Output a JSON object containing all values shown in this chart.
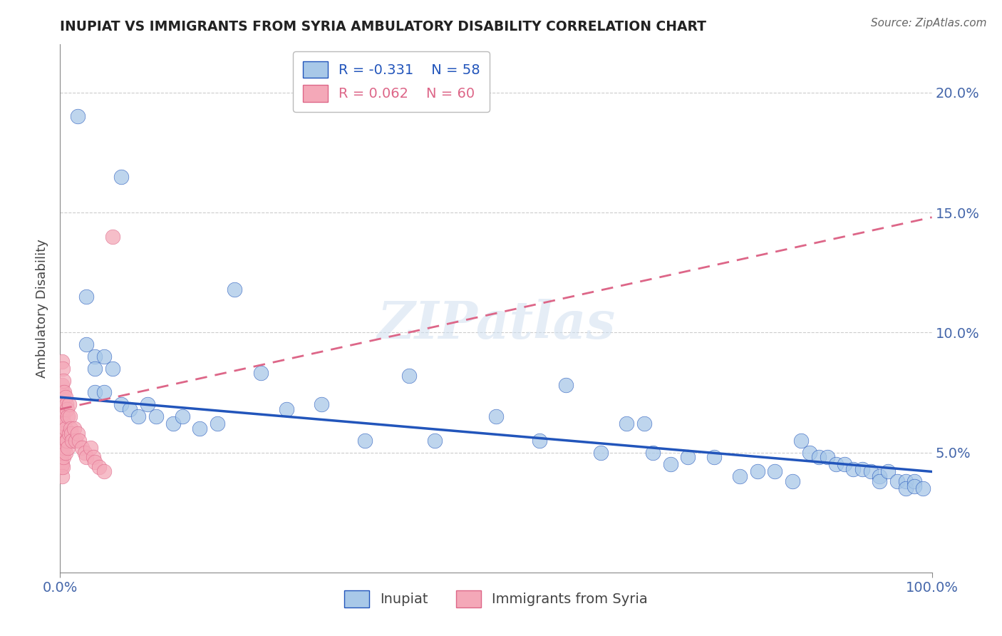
{
  "title": "INUPIAT VS IMMIGRANTS FROM SYRIA AMBULATORY DISABILITY CORRELATION CHART",
  "source": "Source: ZipAtlas.com",
  "ylabel": "Ambulatory Disability",
  "xlim": [
    0.0,
    1.0
  ],
  "ylim": [
    0.0,
    0.22
  ],
  "yticks": [
    0.05,
    0.1,
    0.15,
    0.2
  ],
  "ytick_labels": [
    "5.0%",
    "10.0%",
    "15.0%",
    "20.0%"
  ],
  "xticks": [
    0.0,
    1.0
  ],
  "xtick_labels": [
    "0.0%",
    "100.0%"
  ],
  "legend_r1": "R = -0.331",
  "legend_n1": "N = 58",
  "legend_r2": "R = 0.062",
  "legend_n2": "N = 60",
  "color_inupiat": "#a8c8e8",
  "color_syria": "#f4a8b8",
  "color_line_inupiat": "#2255bb",
  "color_line_syria": "#dd6688",
  "grid_color": "#cccccc",
  "title_color": "#222222",
  "axis_label_color": "#4466aa",
  "watermark": "ZIPatlas",
  "inupiat_x": [
    0.02,
    0.07,
    0.03,
    0.03,
    0.04,
    0.04,
    0.04,
    0.05,
    0.05,
    0.06,
    0.07,
    0.08,
    0.09,
    0.1,
    0.11,
    0.13,
    0.14,
    0.16,
    0.18,
    0.2,
    0.23,
    0.26,
    0.3,
    0.35,
    0.4,
    0.43,
    0.5,
    0.55,
    0.58,
    0.62,
    0.65,
    0.67,
    0.68,
    0.7,
    0.72,
    0.75,
    0.78,
    0.8,
    0.82,
    0.84,
    0.85,
    0.86,
    0.87,
    0.88,
    0.89,
    0.9,
    0.91,
    0.92,
    0.93,
    0.94,
    0.94,
    0.95,
    0.96,
    0.97,
    0.97,
    0.98,
    0.98,
    0.99
  ],
  "inupiat_y": [
    0.19,
    0.165,
    0.115,
    0.095,
    0.09,
    0.085,
    0.075,
    0.09,
    0.075,
    0.085,
    0.07,
    0.068,
    0.065,
    0.07,
    0.065,
    0.062,
    0.065,
    0.06,
    0.062,
    0.118,
    0.083,
    0.068,
    0.07,
    0.055,
    0.082,
    0.055,
    0.065,
    0.055,
    0.078,
    0.05,
    0.062,
    0.062,
    0.05,
    0.045,
    0.048,
    0.048,
    0.04,
    0.042,
    0.042,
    0.038,
    0.055,
    0.05,
    0.048,
    0.048,
    0.045,
    0.045,
    0.043,
    0.043,
    0.042,
    0.04,
    0.038,
    0.042,
    0.038,
    0.038,
    0.035,
    0.038,
    0.036,
    0.035
  ],
  "syria_x": [
    0.001,
    0.001,
    0.001,
    0.001,
    0.001,
    0.001,
    0.001,
    0.001,
    0.001,
    0.001,
    0.002,
    0.002,
    0.002,
    0.002,
    0.002,
    0.002,
    0.002,
    0.002,
    0.002,
    0.003,
    0.003,
    0.003,
    0.003,
    0.003,
    0.003,
    0.004,
    0.004,
    0.004,
    0.004,
    0.005,
    0.005,
    0.005,
    0.006,
    0.006,
    0.006,
    0.007,
    0.007,
    0.008,
    0.008,
    0.009,
    0.009,
    0.01,
    0.01,
    0.011,
    0.012,
    0.013,
    0.014,
    0.016,
    0.018,
    0.02,
    0.022,
    0.025,
    0.028,
    0.03,
    0.035,
    0.038,
    0.04,
    0.045,
    0.05,
    0.06
  ],
  "syria_y": [
    0.075,
    0.068,
    0.062,
    0.058,
    0.055,
    0.052,
    0.05,
    0.048,
    0.046,
    0.044,
    0.088,
    0.078,
    0.072,
    0.066,
    0.06,
    0.055,
    0.05,
    0.045,
    0.04,
    0.085,
    0.075,
    0.065,
    0.058,
    0.05,
    0.044,
    0.08,
    0.068,
    0.058,
    0.048,
    0.075,
    0.062,
    0.052,
    0.073,
    0.06,
    0.05,
    0.07,
    0.055,
    0.068,
    0.055,
    0.065,
    0.052,
    0.07,
    0.058,
    0.065,
    0.06,
    0.058,
    0.055,
    0.06,
    0.055,
    0.058,
    0.055,
    0.052,
    0.05,
    0.048,
    0.052,
    0.048,
    0.046,
    0.044,
    0.042,
    0.14
  ],
  "trend_inupiat_x0": 0.0,
  "trend_inupiat_y0": 0.073,
  "trend_inupiat_x1": 1.0,
  "trend_inupiat_y1": 0.042,
  "trend_syria_x0": 0.0,
  "trend_syria_y0": 0.068,
  "trend_syria_x1": 1.0,
  "trend_syria_y1": 0.148
}
